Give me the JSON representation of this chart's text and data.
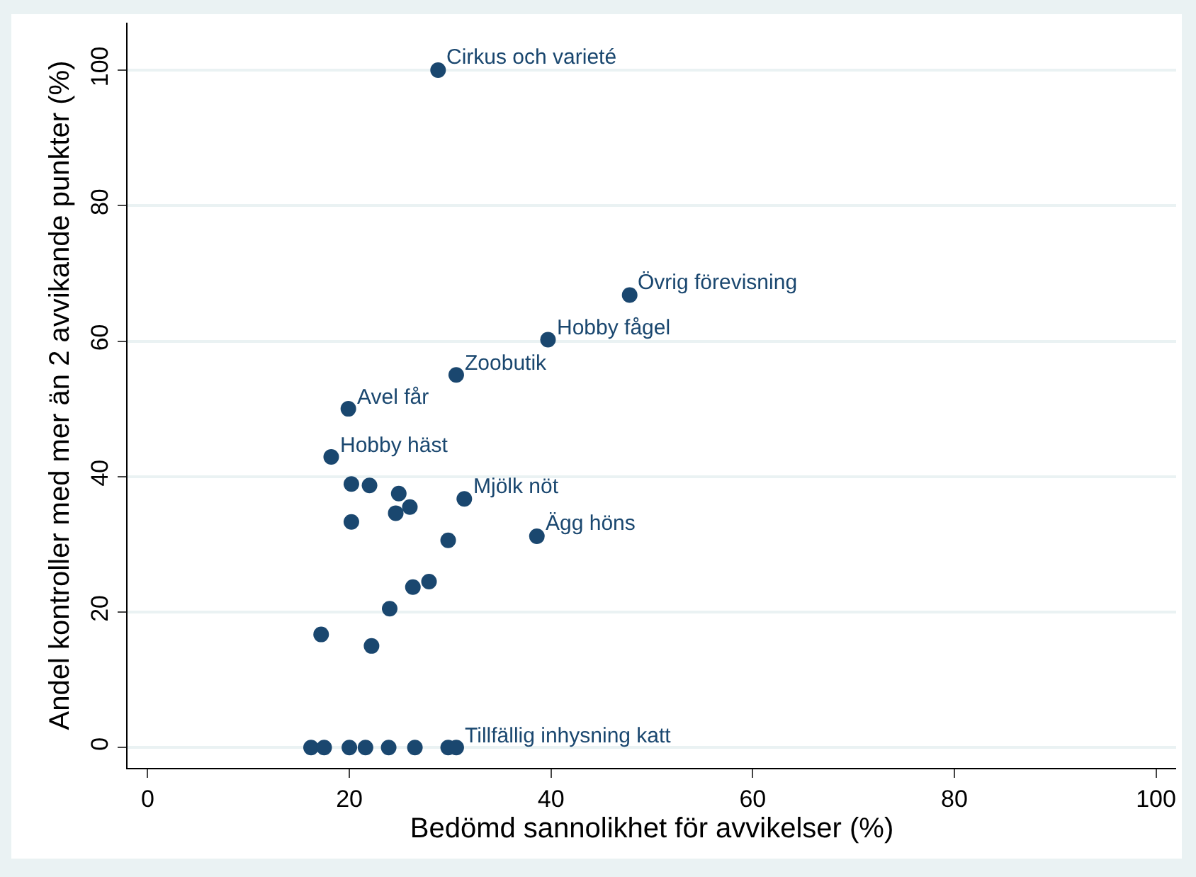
{
  "chart_data": {
    "type": "scatter",
    "xlabel": "Bedömd sannolikhet för avvikelser (%)",
    "ylabel": "Andel kontroller med mer än 2 avvikande punkter (%)",
    "x": [
      28.8,
      47.8,
      39.7,
      30.6,
      19.9,
      18.2,
      20.2,
      22.0,
      24.9,
      26.0,
      24.6,
      20.2,
      31.4,
      38.6,
      29.8,
      27.9,
      26.3,
      24.0,
      17.2,
      22.2,
      16.2,
      17.5,
      20.0,
      21.6,
      23.9,
      26.5,
      29.8,
      30.6
    ],
    "series": [
      {
        "color": "#1a476f",
        "values": [
          100,
          66.8,
          60.2,
          55.0,
          50.0,
          42.9,
          38.9,
          38.7,
          37.5,
          35.5,
          34.6,
          33.3,
          36.7,
          31.2,
          30.6,
          24.5,
          23.7,
          20.5,
          16.7,
          15.0,
          0,
          0,
          0,
          0,
          0,
          0,
          0,
          0
        ]
      }
    ],
    "xlim": [
      -2,
      102
    ],
    "ylim": [
      -3,
      107
    ],
    "xticks": [
      0,
      20,
      40,
      60,
      80,
      100
    ],
    "yticks": [
      0,
      20,
      40,
      60,
      80,
      100
    ],
    "grid": "y",
    "marker": "circle",
    "annotations": [
      {
        "text": "Cirkus och varieté",
        "x": 28.8,
        "y": 100
      },
      {
        "text": "Övrig förevisning",
        "x": 47.8,
        "y": 66.8
      },
      {
        "text": "Hobby fågel",
        "x": 39.7,
        "y": 60.2
      },
      {
        "text": "Zoobutik",
        "x": 30.6,
        "y": 55.0
      },
      {
        "text": "Avel får",
        "x": 19.9,
        "y": 50.0
      },
      {
        "text": "Hobby häst",
        "x": 18.2,
        "y": 42.9
      },
      {
        "text": "Mjölk nöt",
        "x": 31.4,
        "y": 36.7
      },
      {
        "text": "Ägg höns",
        "x": 38.6,
        "y": 31.2
      },
      {
        "text": "Tillfällig inhysning katt",
        "x": 30.6,
        "y": 0
      }
    ]
  }
}
